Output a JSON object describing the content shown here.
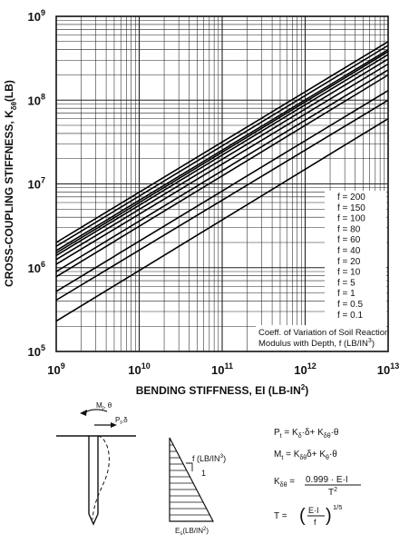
{
  "chart_data": {
    "type": "line",
    "xlabel": "BENDING STIFFNESS, EI (LB-IN",
    "xlabel_sup": "2",
    "xlabel_close": ")",
    "ylabel": "CROSS-COUPLING STIFFNESS, K",
    "ylabel_sub": "δθ",
    "ylabel_tail": "(LB)",
    "x_scale": "log",
    "y_scale": "log",
    "xlim": [
      1000000000.0,
      10000000000000.0
    ],
    "ylim": [
      100000.0,
      1000000000.0
    ],
    "grid": true,
    "x_ticks": [
      {
        "value": 1000000000.0,
        "base": "10",
        "exp": "9"
      },
      {
        "value": 10000000000.0,
        "base": "10",
        "exp": "10"
      },
      {
        "value": 100000000000.0,
        "base": "10",
        "exp": "11"
      },
      {
        "value": 1000000000000.0,
        "base": "10",
        "exp": "12"
      },
      {
        "value": 10000000000000.0,
        "base": "10",
        "exp": "13"
      }
    ],
    "y_ticks": [
      {
        "value": 100000.0,
        "base": "10",
        "exp": "5"
      },
      {
        "value": 1000000.0,
        "base": "10",
        "exp": "6"
      },
      {
        "value": 10000000.0,
        "base": "10",
        "exp": "7"
      },
      {
        "value": 100000000.0,
        "base": "10",
        "exp": "8"
      },
      {
        "value": 1000000000.0,
        "base": "10",
        "exp": "9"
      }
    ],
    "series": [
      {
        "name": "f = 200",
        "f": 200,
        "x": [
          1000000000.0,
          10000000000000.0
        ],
        "y": [
          2000000.0,
          500000000.0
        ]
      },
      {
        "name": "f = 150",
        "f": 150,
        "x": [
          1000000000.0,
          10000000000000.0
        ],
        "y": [
          1800000.0,
          450000000.0
        ]
      },
      {
        "name": "f = 100",
        "f": 100,
        "x": [
          1000000000.0,
          10000000000000.0
        ],
        "y": [
          1600000.0,
          400000000.0
        ]
      },
      {
        "name": "f = 80",
        "f": 80,
        "x": [
          1000000000.0,
          10000000000000.0
        ],
        "y": [
          1500000.0,
          380000000.0
        ]
      },
      {
        "name": "f = 60",
        "f": 60,
        "x": [
          1000000000.0,
          10000000000000.0
        ],
        "y": [
          1400000.0,
          350000000.0
        ]
      },
      {
        "name": "f = 40",
        "f": 40,
        "x": [
          1000000000.0,
          10000000000000.0
        ],
        "y": [
          1250000.0,
          310000000.0
        ]
      },
      {
        "name": "f = 20",
        "f": 20,
        "x": [
          1000000000.0,
          10000000000000.0
        ],
        "y": [
          1100000.0,
          270000000.0
        ]
      },
      {
        "name": "f = 10",
        "f": 10,
        "x": [
          1000000000.0,
          10000000000000.0
        ],
        "y": [
          900000.0,
          230000000.0
        ]
      },
      {
        "name": "f = 5",
        "f": 5,
        "x": [
          1000000000.0,
          10000000000000.0
        ],
        "y": [
          780000.0,
          200000000.0
        ]
      },
      {
        "name": "f = 1",
        "f": 1,
        "x": [
          1000000000.0,
          10000000000000.0
        ],
        "y": [
          520000.0,
          130000000.0
        ]
      },
      {
        "name": "f = 0.5",
        "f": 0.5,
        "x": [
          1000000000.0,
          10000000000000.0
        ],
        "y": [
          410000.0,
          100000000.0
        ]
      },
      {
        "name": "f = 0.1",
        "f": 0.1,
        "x": [
          1000000000.0,
          10000000000000.0
        ],
        "y": [
          230000.0,
          60000000.0
        ]
      }
    ],
    "annotation": {
      "line1": "Coeff. of Variation of Soil Reaction",
      "line2": "Modulus with Depth, f (LB/IN",
      "line2_sup": "3",
      "line2_close": ")"
    }
  },
  "diagram": {
    "moment_label": "M",
    "moment_sub": "t",
    "moment_tail": ", θ",
    "force_label": "P",
    "force_sub": "t",
    "force_tail": ",δ",
    "f_label": "f (LB/IN",
    "f_sup": "3",
    "f_close": ")",
    "slope_one": "1",
    "es_label": "E",
    "es_sub": "s",
    "es_tail": "(LB/IN",
    "es_sup": "2",
    "es_close": ")"
  },
  "equations": {
    "eq1": {
      "lhs": "P",
      "lhs_sub": "t",
      "mid1": " = K",
      "mid1_sub": "δ",
      "mid2": "·δ+ K",
      "mid2_sub": "δθ",
      "tail": "·θ"
    },
    "eq2": {
      "lhs": "M",
      "lhs_sub": "t",
      "mid1": " = K",
      "mid1_sub": "δθ",
      "mid2": "δ+ K",
      "mid2_sub": "θ",
      "tail": "·θ"
    },
    "eq3": {
      "lhs": "K",
      "lhs_sub": "δθ",
      "eq": " = ",
      "num": "0.999 · E·I",
      "den": "T",
      "den_sup": "2"
    },
    "eq4": {
      "lhs": "T = ",
      "num": "E·I",
      "den": "f",
      "exp": "1/5"
    }
  }
}
